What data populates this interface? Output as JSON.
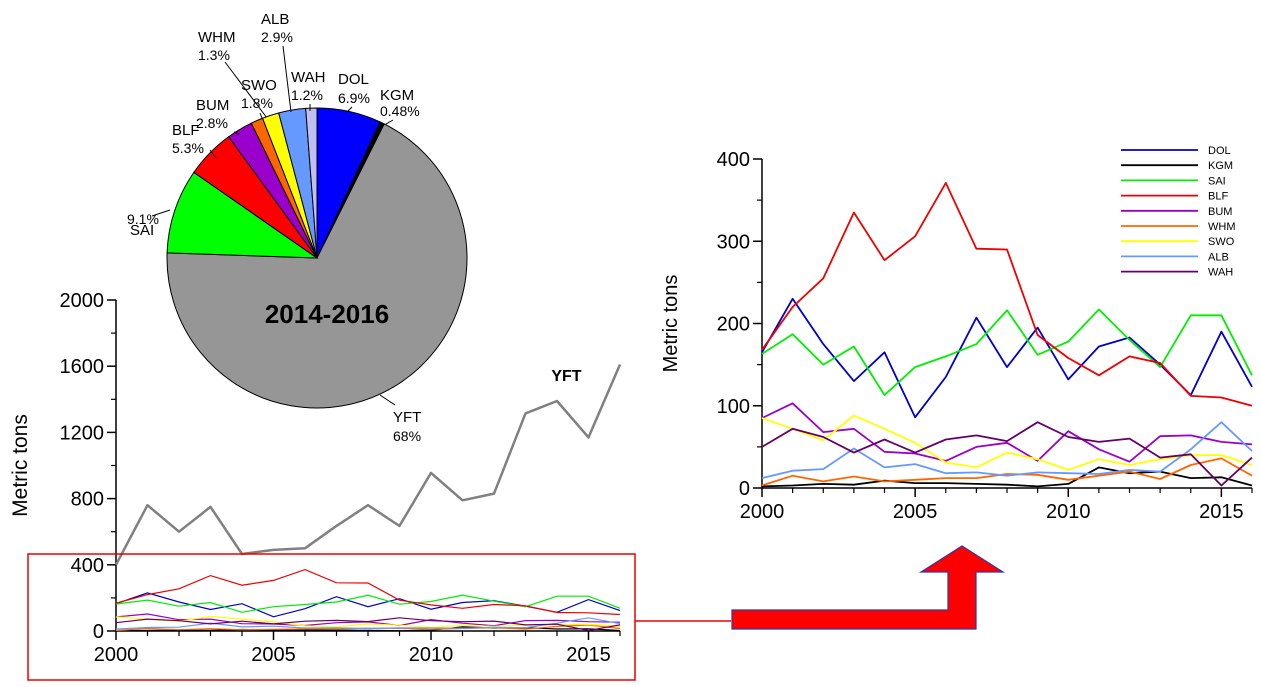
{
  "chart_data": [
    {
      "type": "pie",
      "title": "2014-2016",
      "slices": [
        {
          "label": "DOL",
          "pct_label": "6.9%",
          "value": 6.9,
          "color": "#0000ff"
        },
        {
          "label": "KGM",
          "pct_label": "0.48%",
          "value": 0.48,
          "color": "#000000"
        },
        {
          "label": "YFT",
          "pct_label": "68%",
          "value": 68,
          "color": "#969696"
        },
        {
          "label": "SAI",
          "pct_label": "9.1%",
          "value": 9.1,
          "color": "#00ff00"
        },
        {
          "label": "BLF",
          "pct_label": "5.3%",
          "value": 5.3,
          "color": "#ff0000"
        },
        {
          "label": "BUM",
          "pct_label": "2.8%",
          "value": 2.8,
          "color": "#9900cc"
        },
        {
          "label": "WHM",
          "pct_label": "1.3%",
          "value": 1.3,
          "color": "#ff6600"
        },
        {
          "label": "SWO",
          "pct_label": "1.8%",
          "value": 1.8,
          "color": "#ffff00"
        },
        {
          "label": "ALB",
          "pct_label": "2.9%",
          "value": 2.9,
          "color": "#6699ff"
        },
        {
          "label": "WAH",
          "pct_label": "1.2%",
          "value": 1.2,
          "color": "#c0c0f0"
        }
      ]
    },
    {
      "type": "line",
      "ylabel": "Metric tons",
      "xlim": [
        2000,
        2016
      ],
      "ylim": [
        0,
        2000
      ],
      "xticks": [
        2000,
        2005,
        2010,
        2015
      ],
      "yticks": [
        0,
        400,
        800,
        1200,
        1600,
        2000
      ],
      "highlight_label": "YFT",
      "x": [
        2000,
        2001,
        2002,
        2003,
        2004,
        2005,
        2006,
        2007,
        2008,
        2009,
        2010,
        2011,
        2012,
        2013,
        2014,
        2015,
        2016
      ],
      "series": [
        {
          "name": "YFT",
          "color": "#808080",
          "values": [
            400,
            760,
            600,
            750,
            465,
            490,
            500,
            635,
            760,
            635,
            955,
            790,
            830,
            1315,
            1390,
            1170,
            1610
          ]
        }
      ]
    },
    {
      "type": "line",
      "ylabel": "Metric tons",
      "xlim": [
        2000,
        2016
      ],
      "ylim": [
        0,
        400
      ],
      "xticks": [
        2000,
        2005,
        2010,
        2015
      ],
      "yticks": [
        0,
        100,
        200,
        300,
        400
      ],
      "legend": "top-right",
      "x": [
        2000,
        2001,
        2002,
        2003,
        2004,
        2005,
        2006,
        2007,
        2008,
        2009,
        2010,
        2011,
        2012,
        2013,
        2014,
        2015,
        2016
      ],
      "series": [
        {
          "name": "DOL",
          "color": "#0000cc",
          "values": [
            165,
            230,
            175,
            130,
            165,
            86,
            135,
            207,
            147,
            195,
            132,
            172,
            183,
            150,
            113,
            190,
            123
          ]
        },
        {
          "name": "KGM",
          "color": "#000000",
          "values": [
            2,
            3,
            5,
            4,
            9,
            6,
            6,
            5,
            4,
            2,
            5,
            25,
            18,
            20,
            12,
            13,
            3
          ]
        },
        {
          "name": "SAI",
          "color": "#00ee00",
          "values": [
            163,
            187,
            150,
            172,
            113,
            147,
            160,
            175,
            216,
            162,
            178,
            217,
            180,
            147,
            210,
            210,
            137
          ]
        },
        {
          "name": "BLF",
          "color": "#ee0000",
          "values": [
            168,
            220,
            255,
            335,
            277,
            306,
            371,
            291,
            290,
            186,
            158,
            137,
            160,
            152,
            112,
            110,
            100
          ]
        },
        {
          "name": "BUM",
          "color": "#9900cc",
          "values": [
            85,
            103,
            68,
            72,
            44,
            42,
            33,
            50,
            55,
            33,
            69,
            47,
            32,
            63,
            64,
            56,
            53
          ]
        },
        {
          "name": "WHM",
          "color": "#ff6600",
          "values": [
            3,
            15,
            8,
            14,
            8,
            10,
            12,
            12,
            17,
            16,
            10,
            15,
            20,
            11,
            28,
            36,
            15
          ]
        },
        {
          "name": "SWO",
          "color": "#ffff00",
          "values": [
            85,
            72,
            58,
            88,
            72,
            55,
            31,
            25,
            43,
            35,
            22,
            35,
            28,
            35,
            40,
            40,
            28
          ]
        },
        {
          "name": "ALB",
          "color": "#6699ff",
          "values": [
            12,
            21,
            23,
            48,
            25,
            29,
            18,
            19,
            15,
            19,
            18,
            17,
            22,
            20,
            47,
            80,
            45
          ]
        },
        {
          "name": "WAH",
          "color": "#660066",
          "values": [
            50,
            72,
            62,
            43,
            59,
            43,
            59,
            64,
            57,
            80,
            62,
            56,
            60,
            37,
            41,
            3,
            37
          ]
        }
      ]
    }
  ]
}
